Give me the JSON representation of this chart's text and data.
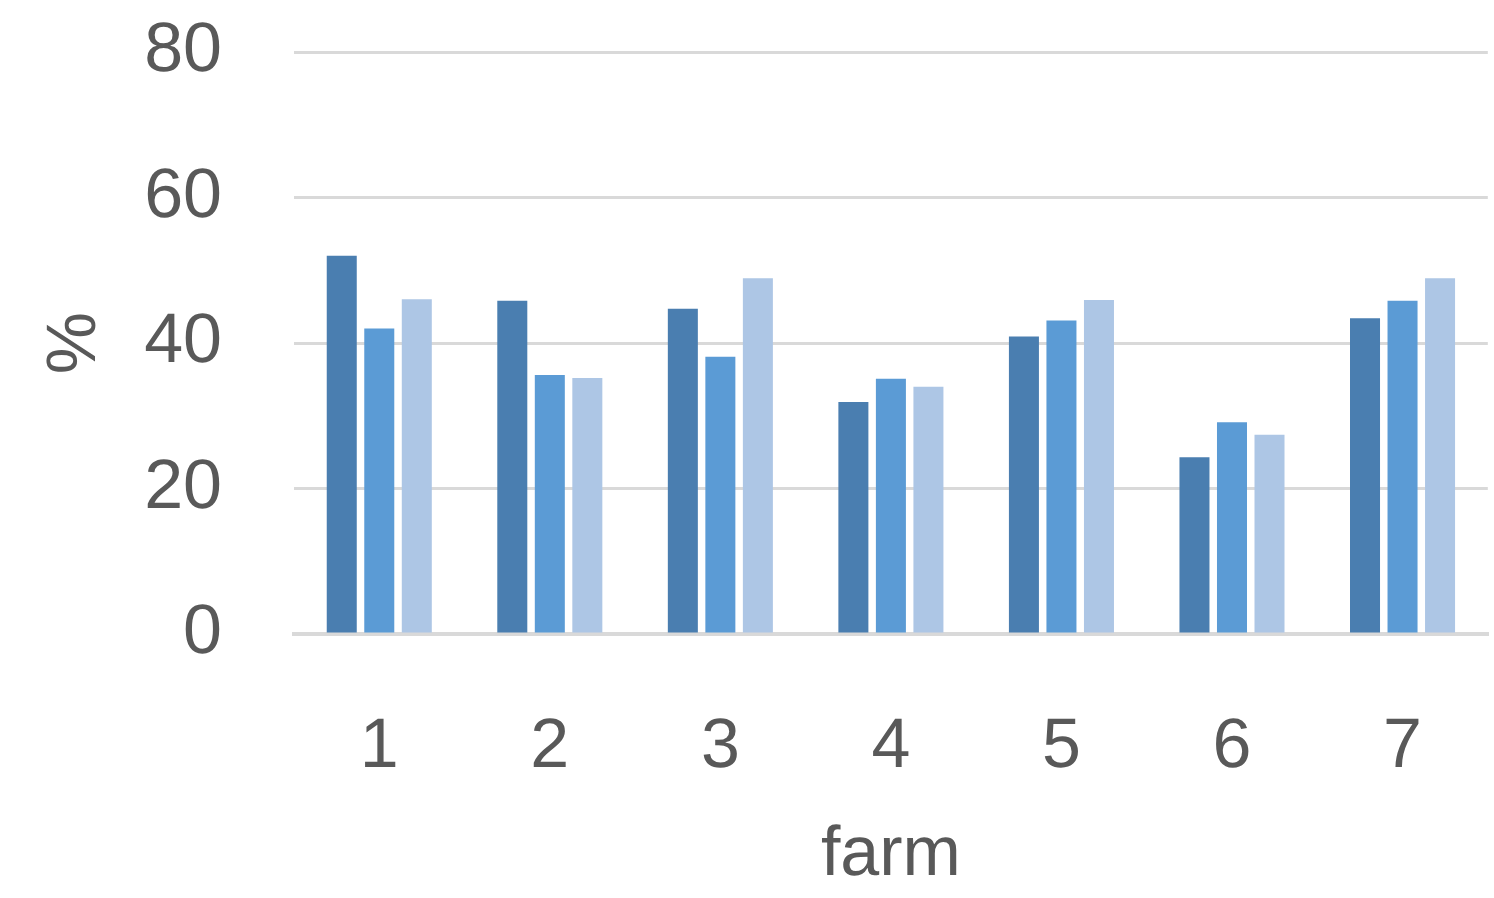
{
  "chart_data": {
    "type": "bar",
    "xlabel": "farm",
    "ylabel": "%",
    "categories": [
      "1",
      "2",
      "3",
      "4",
      "5",
      "6",
      "7"
    ],
    "series": [
      {
        "color": "#4a7eb0",
        "values": [
          52,
          45.8,
          44.7,
          31.9,
          40.9,
          24.3,
          43.4
        ]
      },
      {
        "color": "#5b9bd5",
        "values": [
          42,
          35.6,
          38.1,
          35.1,
          43.1,
          29.1,
          45.8
        ]
      },
      {
        "color": "#adc6e5",
        "values": [
          46,
          35.2,
          48.9,
          34,
          45.9,
          27.4,
          48.9
        ]
      }
    ],
    "ylim": [
      0,
      80
    ],
    "yticks": [
      0,
      20,
      40,
      60,
      80
    ],
    "grid": "y"
  }
}
